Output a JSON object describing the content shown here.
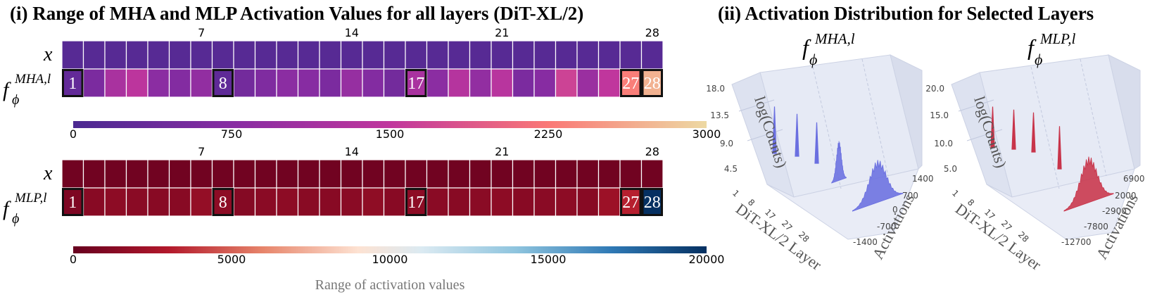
{
  "chart_data": [
    {
      "type": "heatmap",
      "panel_title": "(i) Range of MHA and MLP Activation Values for all layers (DiT-XL/2)",
      "layer_ticks": [
        "7",
        "14",
        "21",
        "28"
      ],
      "rows": [
        "x",
        "f_phi^{MHA,l}"
      ],
      "row_labels": {
        "x": "x",
        "f": "f",
        "phi": "ϕ",
        "sup": "MHA,l"
      },
      "highlighted_layers": [
        "1",
        "8",
        "17",
        "27",
        "28"
      ],
      "x_values": [
        150,
        150,
        150,
        150,
        150,
        150,
        150,
        150,
        150,
        150,
        150,
        150,
        150,
        150,
        150,
        150,
        150,
        150,
        150,
        150,
        150,
        150,
        150,
        150,
        150,
        150,
        150,
        150
      ],
      "f_values": [
        300,
        600,
        1200,
        1450,
        800,
        700,
        900,
        250,
        500,
        650,
        800,
        750,
        600,
        950,
        700,
        500,
        1200,
        800,
        1350,
        900,
        1400,
        600,
        750,
        1650,
        1000,
        1500,
        2300,
        2700
      ],
      "colorbar": {
        "colormap": "magma_purple",
        "min": 0,
        "max": 3000,
        "ticks": [
          "0",
          "750",
          "1500",
          "2250",
          "3000"
        ]
      }
    },
    {
      "type": "heatmap",
      "layer_ticks": [
        "7",
        "14",
        "21",
        "28"
      ],
      "rows": [
        "x",
        "f_phi^{MLP,l}"
      ],
      "row_labels": {
        "x": "x",
        "f": "f",
        "phi": "ϕ",
        "sup": "MLP,l"
      },
      "highlighted_layers": [
        "1",
        "8",
        "17",
        "27",
        "28"
      ],
      "x_values": [
        400,
        400,
        400,
        400,
        400,
        400,
        400,
        400,
        400,
        400,
        400,
        400,
        400,
        400,
        400,
        400,
        400,
        400,
        400,
        400,
        400,
        400,
        400,
        400,
        400,
        400,
        400,
        400
      ],
      "f_values": [
        900,
        1300,
        1500,
        1400,
        1300,
        1300,
        1800,
        1500,
        1200,
        1400,
        1500,
        1350,
        1300,
        1400,
        1600,
        1300,
        1500,
        1400,
        1300,
        1400,
        1500,
        1300,
        1400,
        1500,
        1300,
        2100,
        3200,
        20000
      ],
      "colorbar": {
        "colormap": "RdBu",
        "min": 0,
        "max": 20000,
        "ticks": [
          "0",
          "5000",
          "10000",
          "15000",
          "20000"
        ],
        "label": "Range of activation values"
      }
    },
    {
      "type": "area",
      "panel_title": "(ii) Activation Distribution for Selected Layers",
      "subplot_label": {
        "f": "f",
        "phi": "ϕ",
        "sup": "MHA,l"
      },
      "zlabel": "log(Counts)",
      "xlabel": "DiT-XL/2 Layer",
      "ylabel": "Activations",
      "z_ticks": [
        "18.0",
        "13.5",
        "9.0",
        "4.5"
      ],
      "layer_ticks": [
        "1",
        "8",
        "17",
        "27",
        "28"
      ],
      "activation_ticks": [
        "1400",
        "700",
        "0",
        "-700",
        "-1400"
      ],
      "series": [
        {
          "layer": "1",
          "peak": 15.5,
          "width": 0.02
        },
        {
          "layer": "8",
          "peak": 14.0,
          "width": 0.03
        },
        {
          "layer": "17",
          "peak": 13.5,
          "width": 0.03
        },
        {
          "layer": "27",
          "peak": 13.0,
          "width": 0.16
        },
        {
          "layer": "28",
          "peak": 14.0,
          "width": 0.55
        }
      ]
    },
    {
      "type": "area",
      "subplot_label": {
        "f": "f",
        "phi": "ϕ",
        "sup": "MLP,l"
      },
      "zlabel": "log(Counts)",
      "xlabel": "DiT-XL/2 Layer",
      "ylabel": "Activations",
      "z_ticks": [
        "20.0",
        "15.0",
        "10.0",
        "5.0"
      ],
      "layer_ticks": [
        "1",
        "8",
        "17",
        "27",
        "28"
      ],
      "activation_ticks": [
        "6900",
        "2000",
        "-2900",
        "-7800",
        "-12700"
      ],
      "series": [
        {
          "layer": "1",
          "peak": 13.0,
          "width": 0.015
        },
        {
          "layer": "8",
          "peak": 12.5,
          "width": 0.015
        },
        {
          "layer": "17",
          "peak": 12.5,
          "width": 0.02
        },
        {
          "layer": "27",
          "peak": 13.5,
          "width": 0.04
        },
        {
          "layer": "28",
          "peak": 14.5,
          "width": 0.5
        }
      ]
    }
  ]
}
